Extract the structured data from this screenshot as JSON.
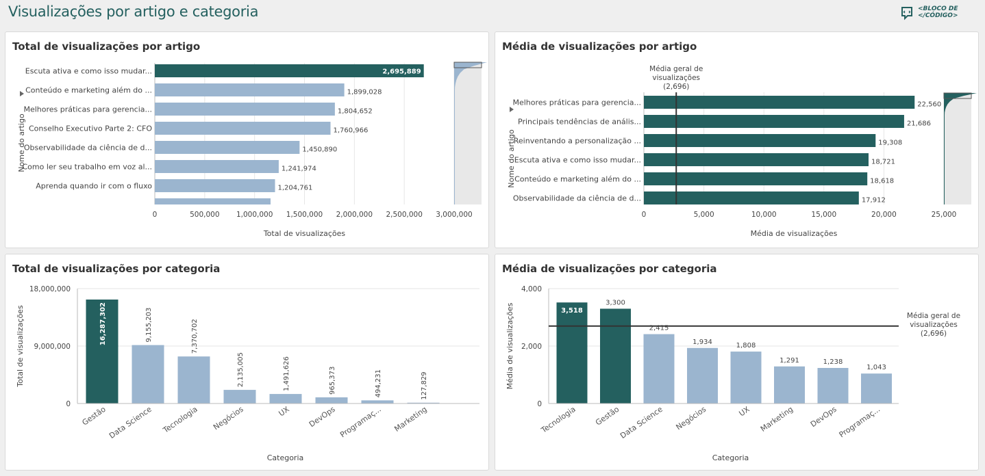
{
  "page": {
    "title": "Visualizações por artigo e categoria"
  },
  "logo": {
    "line1": "<BLOCO DE",
    "line2": "</CÓDIGO>"
  },
  "colors": {
    "highlight": "#24605f",
    "normal": "#9bb5cf",
    "grid": "#e6e6e6",
    "refline": "#333333"
  },
  "chart_data": [
    {
      "id": "total_por_artigo",
      "type": "bar",
      "orientation": "horizontal",
      "title": "Total de visualizações por artigo",
      "xlabel": "Total de visualizações",
      "ylabel": "Nome do artigo",
      "xlim": [
        0,
        3000000
      ],
      "xticks": [
        "0",
        "500,000",
        "1,000,000",
        "1,500,000",
        "2,000,000",
        "2,500,000",
        "3,000,000"
      ],
      "categories": [
        "Escuta ativa e como isso mudar...",
        "Conteúdo e marketing além do ...",
        "Melhores práticas para gerencia...",
        "Conselho Executivo Parte 2: CFO",
        "Observabilidade da ciência de d...",
        "Como ler seu trabalho em voz al...",
        "Aprenda quando ir com o fluxo",
        ""
      ],
      "values": [
        2695889,
        1899028,
        1804652,
        1760966,
        1450890,
        1241974,
        1204761,
        1160000
      ],
      "labels": [
        "2,695,889",
        "1,899,028",
        "1,804,652",
        "1,760,966",
        "1,450,890",
        "1,241,974",
        "1,204,761",
        ""
      ],
      "highlight": [
        0
      ]
    },
    {
      "id": "media_por_artigo",
      "type": "bar",
      "orientation": "horizontal",
      "title": "Média de visualizações por artigo",
      "xlabel": "Média de visualizações",
      "ylabel": "Nome do artigo",
      "xlim": [
        0,
        25000
      ],
      "xticks": [
        "0",
        "5,000",
        "10,000",
        "15,000",
        "20,000",
        "25,000"
      ],
      "categories": [
        "Melhores práticas para gerencia...",
        "Principais tendências de anális...",
        "Reinventando a personalização ...",
        "Escuta ativa e como isso mudar...",
        "Conteúdo e marketing além do ...",
        "Observabilidade da ciência de d..."
      ],
      "values": [
        22560,
        21686,
        19308,
        18721,
        18618,
        17912
      ],
      "labels": [
        "22,560",
        "21,686",
        "19,308",
        "18,721",
        "18,618",
        "17,912"
      ],
      "reference_line": {
        "value": 2696,
        "label": [
          "Média geral de",
          "visualizações",
          "(2,696)"
        ]
      },
      "highlight": [
        0,
        1,
        2,
        3,
        4,
        5
      ]
    },
    {
      "id": "total_por_categoria",
      "type": "bar",
      "orientation": "vertical",
      "title": "Total de visualizações por categoria",
      "xlabel": "Categoria",
      "ylabel": "Total de visualizações",
      "ylim": [
        0,
        18000000
      ],
      "yticks": [
        "0",
        "9,000,000",
        "18,000,000"
      ],
      "categories": [
        "Gestão",
        "Data Science",
        "Tecnologia",
        "Negócios",
        "UX",
        "DevOps",
        "Programaç...",
        "Marketing"
      ],
      "values": [
        16287302,
        9155203,
        7370702,
        2135005,
        1491626,
        965373,
        494231,
        127829
      ],
      "labels": [
        "16,287,302",
        "9,155,203",
        "7,370,702",
        "2,135,005",
        "1,491,626",
        "965,373",
        "494,231",
        "127,829"
      ],
      "highlight": [
        0
      ]
    },
    {
      "id": "media_por_categoria",
      "type": "bar",
      "orientation": "vertical",
      "title": "Média de visualizações por categoria",
      "xlabel": "Categoria",
      "ylabel": "Média de visualizações",
      "ylim": [
        0,
        4000
      ],
      "yticks": [
        "0",
        "2,000",
        "4,000"
      ],
      "categories": [
        "Tecnologia",
        "Gestão",
        "Data Science",
        "Negócios",
        "UX",
        "Marketing",
        "DevOps",
        "Programaç..."
      ],
      "values": [
        3518,
        3300,
        2415,
        1934,
        1808,
        1291,
        1238,
        1043
      ],
      "labels": [
        "3,518",
        "3,300",
        "2,415",
        "1,934",
        "1,808",
        "1,291",
        "1,238",
        "1,043"
      ],
      "reference_line": {
        "value": 2696,
        "label": [
          "Média geral de",
          "visualizações",
          "(2,696)"
        ]
      },
      "highlight": [
        0,
        1
      ]
    }
  ]
}
